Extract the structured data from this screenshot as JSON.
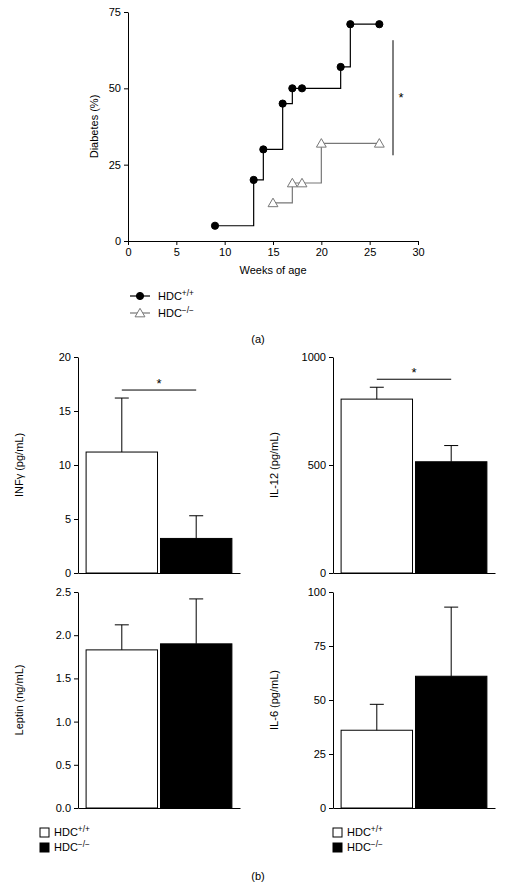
{
  "panel_labels": [
    "(a)",
    "(b)"
  ],
  "chart_data": [
    {
      "type": "line",
      "x_label": "Weeks of age",
      "y_label": "Diabetes (%)",
      "xlim": [
        0,
        30
      ],
      "xticks": [
        0,
        5,
        10,
        15,
        20,
        25,
        30
      ],
      "ylim": [
        0,
        75
      ],
      "yticks": [
        0,
        25,
        50,
        75
      ],
      "line_style": "step",
      "legend": "bottom-left",
      "annotations": [
        "*"
      ],
      "series": [
        {
          "name": "HDC+/+",
          "color": "#000000",
          "marker": "circle",
          "x": [
            9,
            13,
            14,
            16,
            17,
            18,
            22,
            23,
            26
          ],
          "values": [
            5,
            20,
            30,
            45,
            50,
            50,
            57,
            71,
            71
          ]
        },
        {
          "name": "HDC−/−",
          "color": "#777777",
          "marker": "triangle-open",
          "x": [
            15,
            17,
            18,
            20,
            26
          ],
          "values": [
            12.5,
            19,
            19,
            32,
            32
          ]
        }
      ]
    },
    {
      "type": "bar",
      "y_label": "INFγ (pg/mL)",
      "categories": [
        null
      ],
      "ylim": [
        0,
        20
      ],
      "yticks": [
        0,
        5,
        10,
        15,
        20
      ],
      "tick_labels": "y",
      "annotations": [
        "*"
      ],
      "series": [
        {
          "color": "#ffffff",
          "values": [
            11.2
          ],
          "errors": [
            5.0
          ]
        },
        {
          "color": "#000000",
          "values": [
            3.2
          ],
          "errors": [
            2.1
          ]
        }
      ]
    },
    {
      "type": "bar",
      "y_label": "IL-12 (pg/mL)",
      "categories": [
        null
      ],
      "ylim": [
        0,
        1000
      ],
      "yticks": [
        0,
        500,
        1000
      ],
      "tick_labels": "y",
      "annotations": [
        "*"
      ],
      "series": [
        {
          "color": "#ffffff",
          "values": [
            805
          ],
          "errors": [
            55
          ]
        },
        {
          "color": "#000000",
          "values": [
            515
          ],
          "errors": [
            75
          ]
        }
      ]
    },
    {
      "type": "bar",
      "y_label": "Leptin (ng/mL)",
      "categories": [
        null
      ],
      "ylim": [
        0,
        2.5
      ],
      "yticks": [
        {
          "value": 0,
          "label": "0.0"
        },
        {
          "value": 0.5,
          "label": "0.5"
        },
        {
          "value": 1,
          "label": "1.0"
        },
        {
          "value": 1.5,
          "label": "1.5"
        },
        {
          "value": 2,
          "label": "2.0"
        },
        {
          "value": 2.5,
          "label": "2.5"
        }
      ],
      "tick_labels": "y",
      "legend": "bottom",
      "series": [
        {
          "name": "HDC+/+",
          "color": "#ffffff",
          "values": [
            1.83
          ],
          "errors": [
            0.29
          ]
        },
        {
          "name": "HDC−/−",
          "color": "#000000",
          "values": [
            1.9
          ],
          "errors": [
            0.52
          ]
        }
      ]
    },
    {
      "type": "bar",
      "y_label": "IL-6 (pg/mL)",
      "categories": [
        null
      ],
      "ylim": [
        0,
        100
      ],
      "yticks": [
        0,
        25,
        50,
        75,
        100
      ],
      "tick_labels": "y",
      "legend": "bottom",
      "series": [
        {
          "name": "HDC+/+",
          "color": "#ffffff",
          "values": [
            36
          ],
          "errors": [
            12
          ]
        },
        {
          "name": "HDC−/−",
          "color": "#000000",
          "values": [
            61
          ],
          "errors": [
            32
          ]
        }
      ]
    }
  ]
}
